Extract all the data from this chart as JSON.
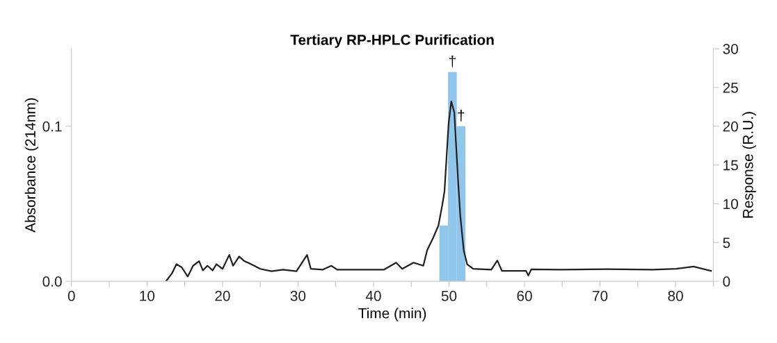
{
  "chart_data": {
    "type": "line",
    "title": "Tertiary RP-HPLC Purification",
    "xlabel": "Time (min)",
    "ylabel": "Absorbance (214nm)",
    "y2label": "Response (R.U.)",
    "xlim": [
      0,
      85
    ],
    "xticks": [
      0,
      {
        "value": 5,
        "label": null
      },
      10,
      {
        "value": 15,
        "label": null
      },
      20,
      {
        "value": 25,
        "label": null
      },
      30,
      {
        "value": 35,
        "label": null
      },
      40,
      {
        "value": 45,
        "label": null
      },
      50,
      {
        "value": 55,
        "label": null
      },
      60,
      {
        "value": 65,
        "label": null
      },
      70,
      {
        "value": 75,
        "label": null
      },
      80,
      {
        "value": 85,
        "label": null
      }
    ],
    "ylim": [
      0,
      0.15
    ],
    "yticks": [
      "0.0",
      0.1
    ],
    "y2lim": [
      0,
      30
    ],
    "y2ticks": [
      0,
      5,
      10,
      15,
      20,
      25,
      30
    ],
    "grid": false,
    "legend": false,
    "series": [
      {
        "type": "bar",
        "axis": "y2",
        "color": "#8fc6ea",
        "x": [
          49.3,
          50.45,
          51.6
        ],
        "values": [
          7.2,
          27,
          20
        ],
        "value_labels": [
          null,
          "†",
          "†"
        ]
      },
      {
        "axis": "y",
        "color": "#231f20",
        "x": [
          12.5,
          13.3,
          13.9,
          14.6,
          15.4,
          16.1,
          16.9,
          17.4,
          18.0,
          18.7,
          19.2,
          20.0,
          20.9,
          21.4,
          22.2,
          22.9,
          23.8,
          25.0,
          26.5,
          28.0,
          29.8,
          31.2,
          31.7,
          33.3,
          34.4,
          35.2,
          38.1,
          41.4,
          43.0,
          43.8,
          45.3,
          46.6,
          47.1,
          47.9,
          48.6,
          49.1,
          49.4,
          49.95,
          50.3,
          50.7,
          51.2,
          51.5,
          51.95,
          52.4,
          53.2,
          55.6,
          56.4,
          57.0,
          60.2,
          60.5,
          60.9,
          64.8,
          70.9,
          77.0,
          80.1,
          82.4,
          84.7
        ],
        "values": [
          0.0,
          0.005,
          0.011,
          0.009,
          0.003,
          0.01,
          0.013,
          0.007,
          0.01,
          0.007,
          0.011,
          0.008,
          0.017,
          0.01,
          0.016,
          0.013,
          0.011,
          0.008,
          0.0065,
          0.0075,
          0.0065,
          0.017,
          0.008,
          0.0075,
          0.01,
          0.0075,
          0.0075,
          0.0075,
          0.012,
          0.008,
          0.012,
          0.01,
          0.02,
          0.028,
          0.036,
          0.049,
          0.058,
          0.102,
          0.116,
          0.109,
          0.065,
          0.042,
          0.02,
          0.011,
          0.008,
          0.0075,
          0.0134,
          0.0067,
          0.0067,
          0.0037,
          0.0077,
          0.0075,
          0.0078,
          0.0075,
          0.008,
          0.0095,
          0.0067
        ]
      }
    ]
  }
}
